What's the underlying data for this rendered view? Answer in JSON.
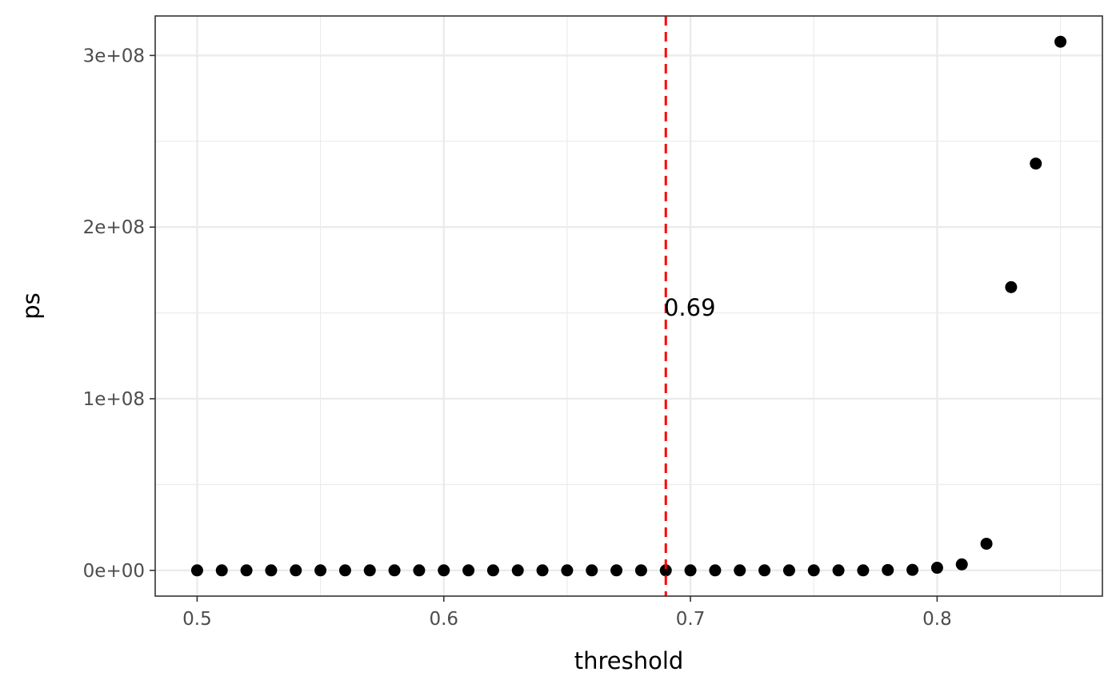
{
  "chart_data": {
    "type": "scatter",
    "title": "",
    "xlabel": "threshold",
    "ylabel": "ps",
    "xlim": [
      0.483,
      0.867
    ],
    "ylim": [
      -15000000,
      323000000
    ],
    "x_ticks": [
      0.5,
      0.6,
      0.7,
      0.8
    ],
    "x_tick_labels": [
      "0.5",
      "0.6",
      "0.7",
      "0.8"
    ],
    "x_minor_ticks": [
      0.55,
      0.65,
      0.75,
      0.85
    ],
    "y_ticks": [
      0,
      100000000,
      200000000,
      300000000
    ],
    "y_tick_labels": [
      "0e+00",
      "1e+08",
      "2e+08",
      "3e+08"
    ],
    "y_minor_ticks": [
      50000000,
      150000000,
      250000000
    ],
    "grid": true,
    "legend": "none",
    "x": [
      0.5,
      0.51,
      0.52,
      0.53,
      0.54,
      0.55,
      0.56,
      0.57,
      0.58,
      0.59,
      0.6,
      0.61,
      0.62,
      0.63,
      0.64,
      0.65,
      0.66,
      0.67,
      0.68,
      0.69,
      0.7,
      0.71,
      0.72,
      0.73,
      0.74,
      0.75,
      0.76,
      0.77,
      0.78,
      0.79,
      0.8,
      0.81,
      0.82,
      0.83,
      0.84,
      0.85
    ],
    "y": [
      0,
      0,
      0,
      0,
      0,
      0,
      0,
      0,
      0,
      0,
      0,
      0,
      0,
      0,
      0,
      0,
      0,
      0,
      0,
      0,
      0,
      0,
      0,
      0,
      0,
      0,
      0,
      0,
      200000,
      300000,
      1500000,
      3500000,
      15500000,
      165000000,
      237000000,
      308000000
    ],
    "reference_line": {
      "axis": "x",
      "value": 0.69,
      "style": "dashed",
      "color": "#ff0000",
      "label": "0.69",
      "label_y": 153000000
    },
    "point_color": "#000000"
  }
}
